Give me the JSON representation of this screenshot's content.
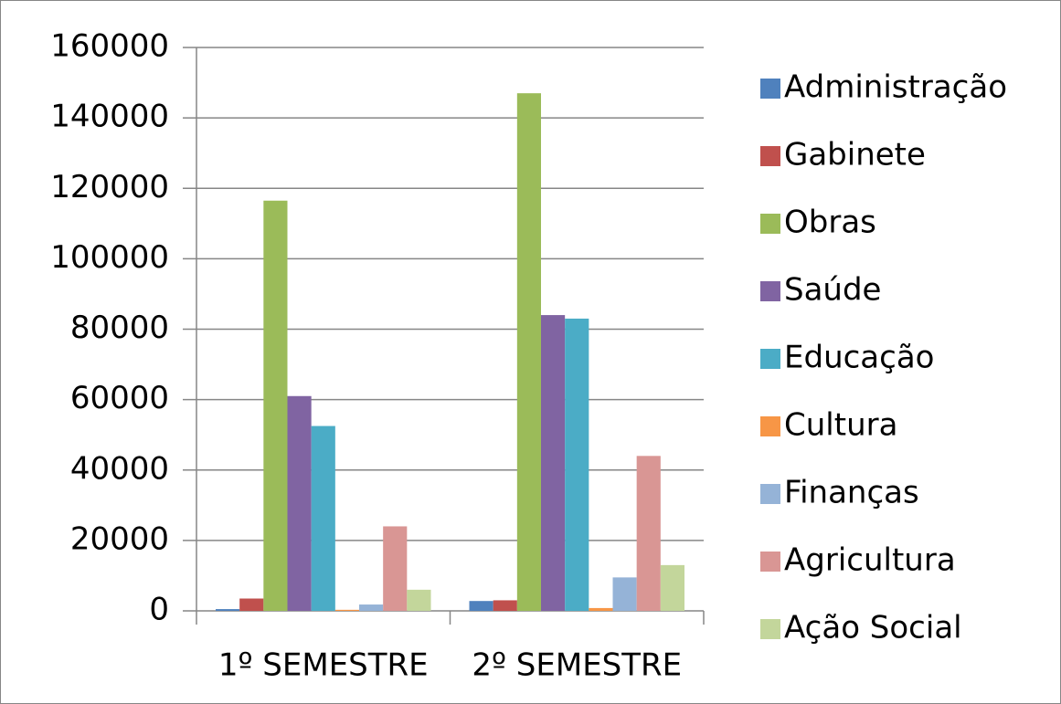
{
  "chart_data": {
    "type": "bar",
    "categories": [
      "1º SEMESTRE",
      "2º SEMESTRE"
    ],
    "series": [
      {
        "name": "Administração",
        "color": "#4F81BD",
        "values": [
          500,
          2800
        ]
      },
      {
        "name": "Gabinete",
        "color": "#C0504D",
        "values": [
          3500,
          3000
        ]
      },
      {
        "name": "Obras",
        "color": "#9BBB59",
        "values": [
          116500,
          147000
        ]
      },
      {
        "name": "Saúde",
        "color": "#8064A2",
        "values": [
          61000,
          84000
        ]
      },
      {
        "name": "Educação",
        "color": "#4BACC6",
        "values": [
          52500,
          83000
        ]
      },
      {
        "name": "Cultura",
        "color": "#F79646",
        "values": [
          300,
          800
        ]
      },
      {
        "name": "Finanças",
        "color": "#95B3D7",
        "values": [
          1800,
          9500
        ]
      },
      {
        "name": "Agricultura",
        "color": "#D99694",
        "values": [
          24000,
          44000
        ]
      },
      {
        "name": "Ação Social",
        "color": "#C3D69B",
        "values": [
          6000,
          13000
        ]
      }
    ],
    "ylim": [
      0,
      160000
    ],
    "yticks": [
      0,
      20000,
      40000,
      60000,
      80000,
      100000,
      120000,
      140000,
      160000
    ],
    "grid": true,
    "legend": "right"
  }
}
